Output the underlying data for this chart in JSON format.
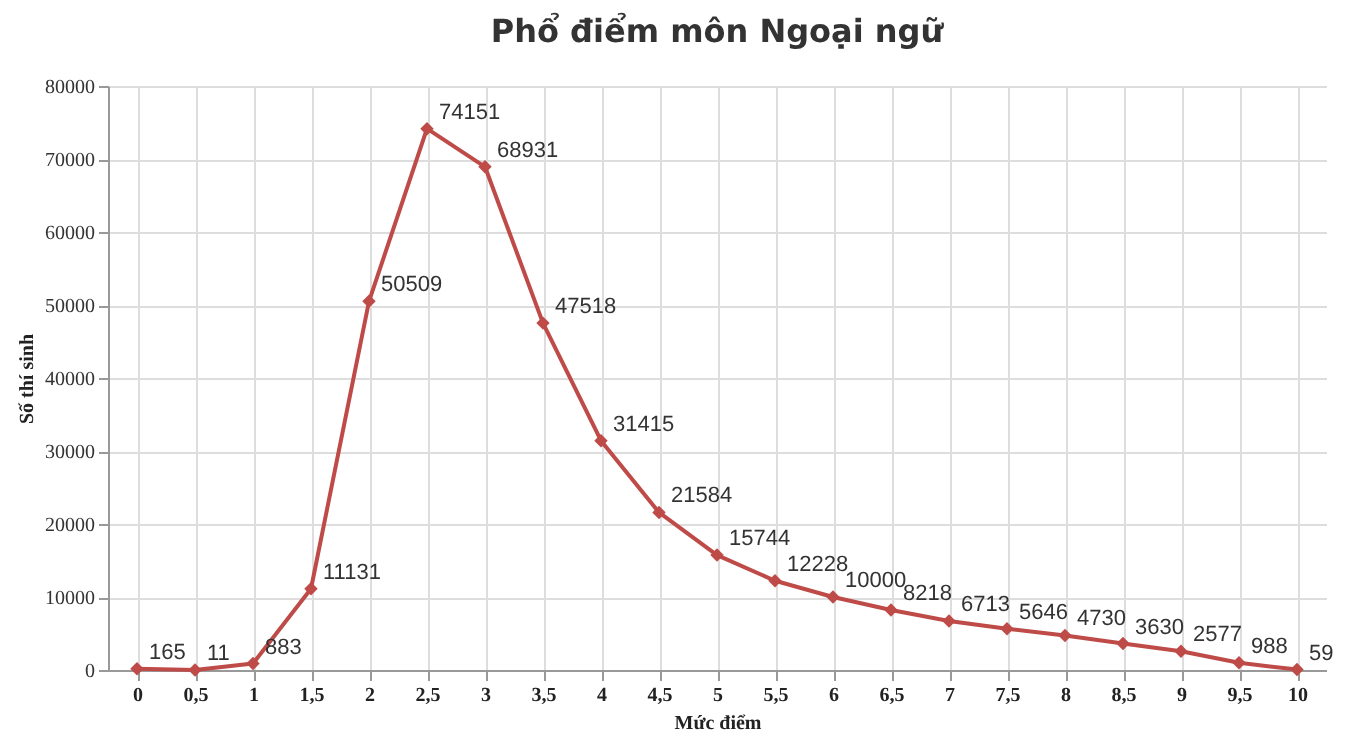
{
  "chart_data": {
    "type": "line",
    "title": "Phổ điểm môn Ngoại ngữ",
    "xlabel": "Mức điểm",
    "ylabel": "Số thí sinh",
    "categories": [
      "0",
      "0,5",
      "1",
      "1,5",
      "2",
      "2,5",
      "3",
      "3,5",
      "4",
      "4,5",
      "5",
      "5,5",
      "6",
      "6,5",
      "7",
      "7,5",
      "8",
      "8,5",
      "9",
      "9,5",
      "10"
    ],
    "series": [
      {
        "color": "#be4b48",
        "values": [
          165,
          11,
          883,
          11131,
          50509,
          74151,
          68931,
          47518,
          31415,
          21584,
          15744,
          12228,
          10000,
          8218,
          6713,
          5646,
          4730,
          3630,
          2577,
          988,
          59
        ]
      }
    ],
    "ylim": [
      0,
      80000
    ],
    "yticks": [
      0,
      10000,
      20000,
      30000,
      40000,
      50000,
      60000,
      70000,
      80000
    ],
    "grid": true,
    "marker": "diamond",
    "line_style": "solid",
    "data_labels": true
  }
}
